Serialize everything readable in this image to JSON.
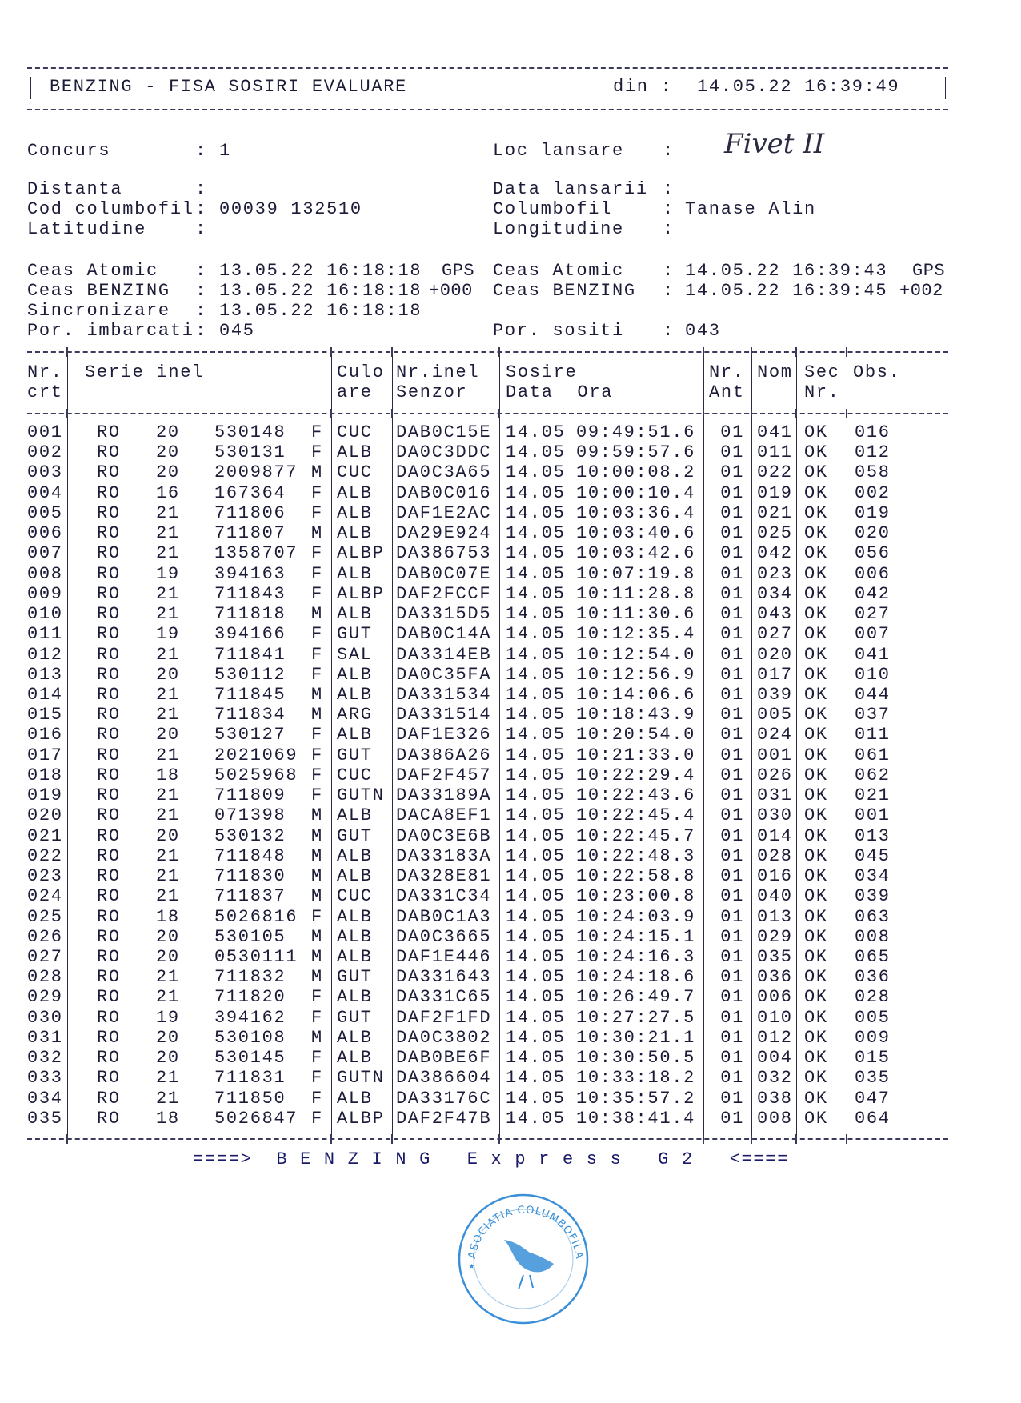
{
  "header": {
    "title": "BENZING - FISA SOSIRI EVALUARE",
    "din_label": "din :",
    "din_value": "14.05.22 16:39:49"
  },
  "info": {
    "concurs": {
      "label": "Concurs",
      "value": "1"
    },
    "loc_lansare": {
      "label": "Loc lansare",
      "value_handwritten": "Fivet II"
    },
    "distanta": {
      "label": "Distanta",
      "value": ""
    },
    "data_lansarii": {
      "label": "Data lansarii",
      "value": ""
    },
    "cod_columbofil": {
      "label": "Cod columbofil",
      "value": "00039 132510"
    },
    "columbofil": {
      "label": "Columbofil",
      "value": "Tanase Alin"
    },
    "latitudine": {
      "label": "Latitudine",
      "value": ""
    },
    "longitudine": {
      "label": "Longitudine",
      "value": ""
    },
    "ceas_atomic_left": {
      "label": "Ceas Atomic",
      "value": "13.05.22 16:18:18",
      "suffix": "GPS"
    },
    "ceas_benzing_left": {
      "label": "Ceas BENZING",
      "value": "13.05.22 16:18:18",
      "suffix": "+000"
    },
    "ceas_atomic_right": {
      "label": "Ceas Atomic",
      "value": "14.05.22 16:39:43",
      "suffix": "GPS"
    },
    "ceas_benzing_right": {
      "label": "Ceas BENZING",
      "value": "14.05.22 16:39:45",
      "suffix": "+002"
    },
    "sincronizare": {
      "label": "Sincronizare",
      "value": "13.05.22 16:18:18"
    },
    "por_imbarcati": {
      "label": "Por. imbarcati",
      "value": "045"
    },
    "por_sositi": {
      "label": "Por. sositi",
      "value": "043"
    },
    "colon": ":"
  },
  "table": {
    "headers": {
      "nr1": "Nr.",
      "nr2": "crt",
      "serie": "Serie inel",
      "culo1": "Culo",
      "culo2": "are",
      "nrinel1": "Nr.inel",
      "nrinel2": "Senzor",
      "sosire1": "Sosire",
      "sosire2": "Data  Ora",
      "ant1": "Nr.",
      "ant2": "Ant",
      "nom": "Nom",
      "sec1": "Sec",
      "sec2": "Nr.",
      "obs": "Obs."
    },
    "rows": [
      [
        "001",
        "RO",
        "20",
        "530148",
        "F",
        "CUC",
        "DAB0C15E",
        "14.05",
        "09:49:51.6",
        "01",
        "041",
        "OK",
        "016"
      ],
      [
        "002",
        "RO",
        "20",
        "530131",
        "F",
        "ALB",
        "DA0C3DDC",
        "14.05",
        "09:59:57.6",
        "01",
        "011",
        "OK",
        "012"
      ],
      [
        "003",
        "RO",
        "20",
        "2009877",
        "M",
        "CUC",
        "DA0C3A65",
        "14.05",
        "10:00:08.2",
        "01",
        "022",
        "OK",
        "058"
      ],
      [
        "004",
        "RO",
        "16",
        "167364",
        "F",
        "ALB",
        "DAB0C016",
        "14.05",
        "10:00:10.4",
        "01",
        "019",
        "OK",
        "002"
      ],
      [
        "005",
        "RO",
        "21",
        "711806",
        "F",
        "ALB",
        "DAF1E2AC",
        "14.05",
        "10:03:36.4",
        "01",
        "021",
        "OK",
        "019"
      ],
      [
        "006",
        "RO",
        "21",
        "711807",
        "M",
        "ALB",
        "DA29E924",
        "14.05",
        "10:03:40.6",
        "01",
        "025",
        "OK",
        "020"
      ],
      [
        "007",
        "RO",
        "21",
        "1358707",
        "F",
        "ALBP",
        "DA386753",
        "14.05",
        "10:03:42.6",
        "01",
        "042",
        "OK",
        "056"
      ],
      [
        "008",
        "RO",
        "19",
        "394163",
        "F",
        "ALB",
        "DAB0C07E",
        "14.05",
        "10:07:19.8",
        "01",
        "023",
        "OK",
        "006"
      ],
      [
        "009",
        "RO",
        "21",
        "711843",
        "F",
        "ALBP",
        "DAF2FCCF",
        "14.05",
        "10:11:28.8",
        "01",
        "034",
        "OK",
        "042"
      ],
      [
        "010",
        "RO",
        "21",
        "711818",
        "M",
        "ALB",
        "DA3315D5",
        "14.05",
        "10:11:30.6",
        "01",
        "043",
        "OK",
        "027"
      ],
      [
        "011",
        "RO",
        "19",
        "394166",
        "F",
        "GUT",
        "DAB0C14A",
        "14.05",
        "10:12:35.4",
        "01",
        "027",
        "OK",
        "007"
      ],
      [
        "012",
        "RO",
        "21",
        "711841",
        "F",
        "SAL",
        "DA3314EB",
        "14.05",
        "10:12:54.0",
        "01",
        "020",
        "OK",
        "041"
      ],
      [
        "013",
        "RO",
        "20",
        "530112",
        "F",
        "ALB",
        "DA0C35FA",
        "14.05",
        "10:12:56.9",
        "01",
        "017",
        "OK",
        "010"
      ],
      [
        "014",
        "RO",
        "21",
        "711845",
        "M",
        "ALB",
        "DA331534",
        "14.05",
        "10:14:06.6",
        "01",
        "039",
        "OK",
        "044"
      ],
      [
        "015",
        "RO",
        "21",
        "711834",
        "M",
        "ARG",
        "DA331514",
        "14.05",
        "10:18:43.9",
        "01",
        "005",
        "OK",
        "037"
      ],
      [
        "016",
        "RO",
        "20",
        "530127",
        "F",
        "ALB",
        "DAF1E326",
        "14.05",
        "10:20:54.0",
        "01",
        "024",
        "OK",
        "011"
      ],
      [
        "017",
        "RO",
        "21",
        "2021069",
        "F",
        "GUT",
        "DA386A26",
        "14.05",
        "10:21:33.0",
        "01",
        "001",
        "OK",
        "061"
      ],
      [
        "018",
        "RO",
        "18",
        "5025968",
        "F",
        "CUC",
        "DAF2F457",
        "14.05",
        "10:22:29.4",
        "01",
        "026",
        "OK",
        "062"
      ],
      [
        "019",
        "RO",
        "21",
        "711809",
        "F",
        "GUTN",
        "DA33189A",
        "14.05",
        "10:22:43.6",
        "01",
        "031",
        "OK",
        "021"
      ],
      [
        "020",
        "RO",
        "21",
        "071398",
        "M",
        "ALB",
        "DACA8EF1",
        "14.05",
        "10:22:45.4",
        "01",
        "030",
        "OK",
        "001"
      ],
      [
        "021",
        "RO",
        "20",
        "530132",
        "M",
        "GUT",
        "DA0C3E6B",
        "14.05",
        "10:22:45.7",
        "01",
        "014",
        "OK",
        "013"
      ],
      [
        "022",
        "RO",
        "21",
        "711848",
        "M",
        "ALB",
        "DA33183A",
        "14.05",
        "10:22:48.3",
        "01",
        "028",
        "OK",
        "045"
      ],
      [
        "023",
        "RO",
        "21",
        "711830",
        "M",
        "ALB",
        "DA328E81",
        "14.05",
        "10:22:58.8",
        "01",
        "016",
        "OK",
        "034"
      ],
      [
        "024",
        "RO",
        "21",
        "711837",
        "M",
        "CUC",
        "DA331C34",
        "14.05",
        "10:23:00.8",
        "01",
        "040",
        "OK",
        "039"
      ],
      [
        "025",
        "RO",
        "18",
        "5026816",
        "F",
        "ALB",
        "DAB0C1A3",
        "14.05",
        "10:24:03.9",
        "01",
        "013",
        "OK",
        "063"
      ],
      [
        "026",
        "RO",
        "20",
        "530105",
        "M",
        "ALB",
        "DA0C3665",
        "14.05",
        "10:24:15.1",
        "01",
        "029",
        "OK",
        "008"
      ],
      [
        "027",
        "RO",
        "20",
        "0530111",
        "M",
        "ALB",
        "DAF1E446",
        "14.05",
        "10:24:16.3",
        "01",
        "035",
        "OK",
        "065"
      ],
      [
        "028",
        "RO",
        "21",
        "711832",
        "M",
        "GUT",
        "DA331643",
        "14.05",
        "10:24:18.6",
        "01",
        "036",
        "OK",
        "036"
      ],
      [
        "029",
        "RO",
        "21",
        "711820",
        "F",
        "ALB",
        "DA331C65",
        "14.05",
        "10:26:49.7",
        "01",
        "006",
        "OK",
        "028"
      ],
      [
        "030",
        "RO",
        "19",
        "394162",
        "F",
        "GUT",
        "DAF2F1FD",
        "14.05",
        "10:27:27.5",
        "01",
        "010",
        "OK",
        "005"
      ],
      [
        "031",
        "RO",
        "20",
        "530108",
        "M",
        "ALB",
        "DA0C3802",
        "14.05",
        "10:30:21.1",
        "01",
        "012",
        "OK",
        "009"
      ],
      [
        "032",
        "RO",
        "20",
        "530145",
        "F",
        "ALB",
        "DAB0BE6F",
        "14.05",
        "10:30:50.5",
        "01",
        "004",
        "OK",
        "015"
      ],
      [
        "033",
        "RO",
        "21",
        "711831",
        "F",
        "GUTN",
        "DA386604",
        "14.05",
        "10:33:18.2",
        "01",
        "032",
        "OK",
        "035"
      ],
      [
        "034",
        "RO",
        "21",
        "711850",
        "F",
        "ALB",
        "DA33176C",
        "14.05",
        "10:35:57.2",
        "01",
        "038",
        "OK",
        "047"
      ],
      [
        "035",
        "RO",
        "18",
        "5026847",
        "F",
        "ALBP",
        "DAF2F47B",
        "14.05",
        "10:38:41.4",
        "01",
        "008",
        "OK",
        "064"
      ]
    ]
  },
  "footer": {
    "text": "====>  B E N Z I N G   E x p r e s s   G 2   <===="
  },
  "stamp": {
    "text": "ASOCIATIA COLUMBOFILA",
    "color": "#3a8fd8"
  }
}
